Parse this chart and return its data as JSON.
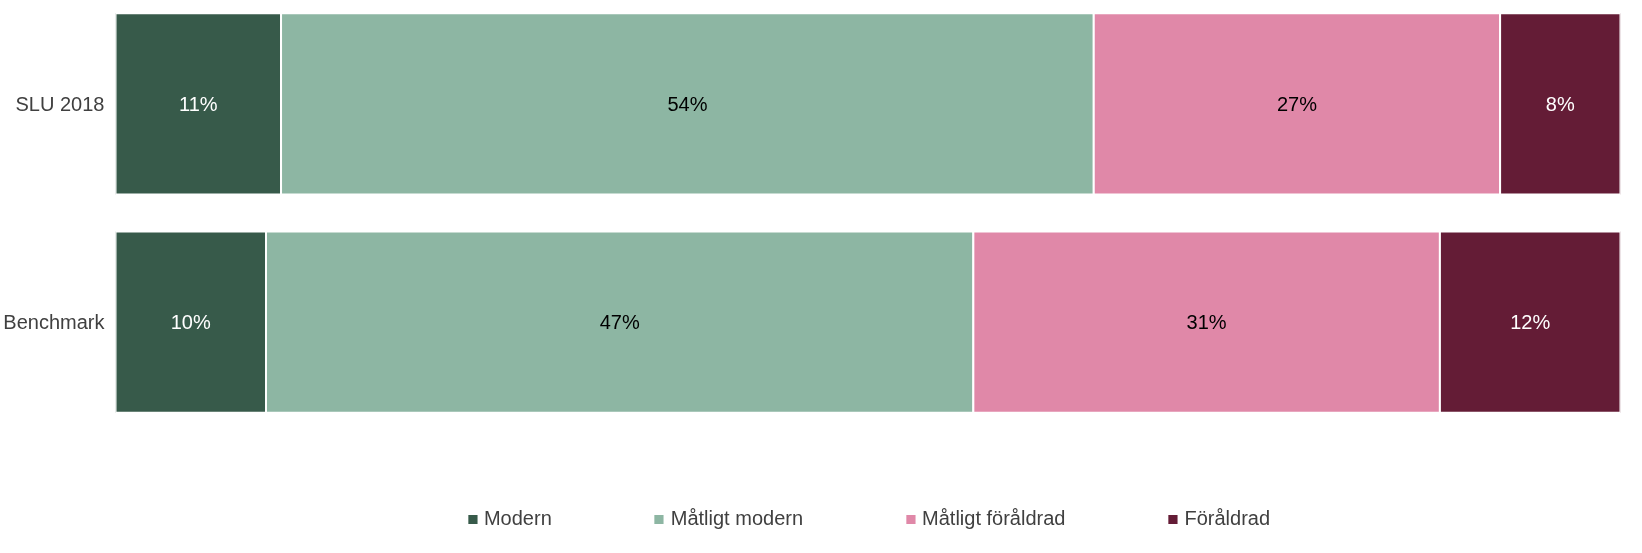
{
  "chart_data": {
    "type": "bar",
    "orientation": "horizontal",
    "stacked": true,
    "categories": [
      "SLU 2018",
      "Benchmark"
    ],
    "series": [
      {
        "name": "Modern",
        "color": "#375a4a",
        "values": [
          11,
          10
        ],
        "value_labels": [
          "11%",
          "10%"
        ]
      },
      {
        "name": "Måtligt modern",
        "color": "#8db6a3",
        "values": [
          54,
          47
        ],
        "value_labels": [
          "54%",
          "47%"
        ]
      },
      {
        "name": "Måtligt föråldrad",
        "color": "#e088a8",
        "values": [
          27,
          31
        ],
        "value_labels": [
          "27%",
          "31%"
        ]
      },
      {
        "name": "Föråldrad",
        "color": "#641c36",
        "values": [
          8,
          12
        ],
        "value_labels": [
          "8%",
          "12%"
        ]
      }
    ],
    "tick_labels": "y",
    "legend": "bottom"
  }
}
